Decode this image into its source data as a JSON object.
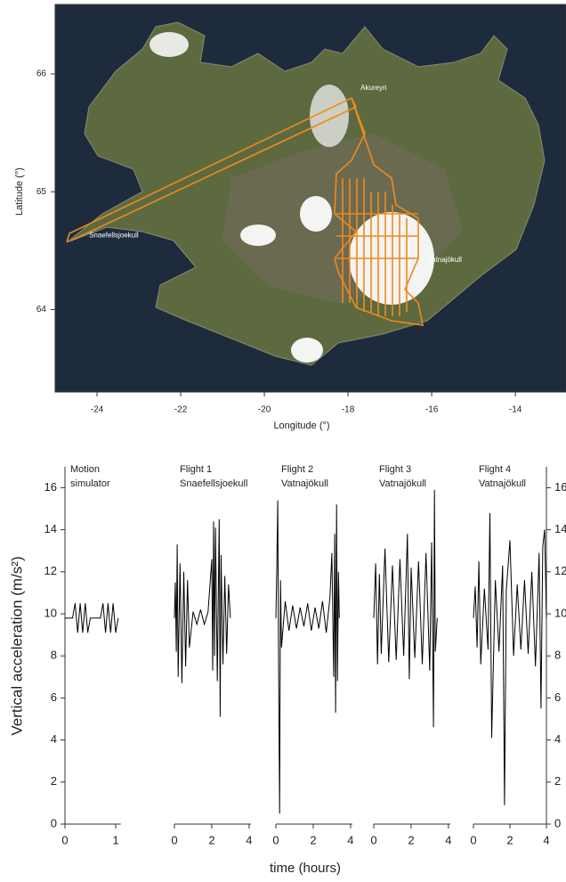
{
  "chart_data": [
    {
      "type": "map",
      "xlabel": "Longitude (°)",
      "ylabel": "Latitude (°)",
      "xlim": [
        -25.0,
        -12.79
      ],
      "ylim": [
        63.3,
        66.59
      ],
      "xticks": [
        -24,
        -22,
        -20,
        -18,
        -16,
        -14
      ],
      "yticks": [
        64,
        65,
        66
      ],
      "annotations": [
        {
          "text": "Akureyri",
          "x": -17.7,
          "y": 65.88
        },
        {
          "text": "Snaefellsjoekull",
          "x": -24.19,
          "y": 64.63
        },
        {
          "text": "Vatnajökull",
          "x": -16.1,
          "y": 64.42
        }
      ]
    },
    {
      "type": "line",
      "ylabel": "Vertical acceleration (m/s²)",
      "xlabel": "time (hours)",
      "ylim": [
        0,
        17
      ],
      "yticks": [
        0,
        2,
        4,
        6,
        8,
        10,
        12,
        14,
        16
      ],
      "color": "#000000",
      "panels": [
        {
          "label": "Motion",
          "sublabel": "simulator",
          "xlim": [
            0,
            1.1
          ],
          "xticks": [
            0,
            1
          ],
          "x": [
            0,
            0.15,
            0.2,
            0.25,
            0.3,
            0.35,
            0.4,
            0.45,
            0.5,
            0.6,
            0.7,
            0.75,
            0.8,
            0.85,
            0.9,
            0.95,
            1.0,
            1.05
          ],
          "values": [
            9.8,
            9.8,
            10.5,
            9.1,
            10.5,
            9.1,
            10.5,
            9.1,
            9.8,
            9.8,
            9.8,
            10.5,
            9.1,
            10.5,
            9.1,
            10.5,
            9.1,
            9.8
          ]
        },
        {
          "label": "Flight 1",
          "sublabel": "Snaefellsjoekull",
          "xlim": [
            0,
            4.1
          ],
          "xticks": [
            0,
            2,
            4
          ],
          "x": [
            0,
            0.05,
            0.1,
            0.15,
            0.2,
            0.3,
            0.4,
            0.5,
            0.6,
            0.7,
            0.8,
            1.0,
            1.2,
            1.4,
            1.6,
            1.8,
            2.0,
            2.05,
            2.1,
            2.15,
            2.2,
            2.3,
            2.4,
            2.45,
            2.5,
            2.6,
            2.7,
            2.8,
            2.9,
            3.0
          ],
          "values": [
            9.8,
            11.5,
            8.2,
            13.3,
            7.0,
            12.4,
            6.7,
            12.0,
            7.5,
            11.6,
            8.4,
            10.1,
            9.5,
            10.2,
            9.5,
            10.1,
            12.6,
            7.3,
            14.4,
            8.0,
            14.1,
            6.8,
            14.5,
            5.1,
            12.8,
            7.6,
            11.8,
            8.1,
            11.4,
            9.8
          ]
        },
        {
          "label": "Flight 2",
          "sublabel": "Vatnajökull",
          "xlim": [
            0,
            4.1
          ],
          "xticks": [
            0,
            2,
            4
          ],
          "x": [
            0,
            0.05,
            0.1,
            0.15,
            0.2,
            0.25,
            0.3,
            0.5,
            0.7,
            0.9,
            1.1,
            1.3,
            1.5,
            1.7,
            1.9,
            2.1,
            2.3,
            2.5,
            2.7,
            2.9,
            3.0,
            3.1,
            3.15,
            3.2,
            3.25,
            3.3,
            3.35,
            3.4
          ],
          "values": [
            9.8,
            12.1,
            15.4,
            7.2,
            0.5,
            11.6,
            8.4,
            10.6,
            9.2,
            10.4,
            9.3,
            10.3,
            9.4,
            10.5,
            9.2,
            10.3,
            9.3,
            10.6,
            9.1,
            10.8,
            12.9,
            7.0,
            13.8,
            5.3,
            15.2,
            6.8,
            12.0,
            9.8
          ]
        },
        {
          "label": "Flight 3",
          "sublabel": "Vatnajökull",
          "xlim": [
            0,
            4.1
          ],
          "xticks": [
            0,
            2,
            4
          ],
          "x": [
            0,
            0.1,
            0.2,
            0.3,
            0.4,
            0.6,
            0.8,
            1.0,
            1.2,
            1.4,
            1.6,
            1.8,
            1.9,
            2.0,
            2.2,
            2.4,
            2.6,
            2.8,
            3.0,
            3.1,
            3.2,
            3.25,
            3.3,
            3.4
          ],
          "values": [
            9.8,
            12.4,
            7.6,
            11.9,
            8.1,
            13.1,
            7.7,
            12.3,
            7.8,
            12.6,
            8.0,
            13.8,
            6.9,
            12.2,
            7.9,
            12.5,
            7.6,
            12.9,
            7.3,
            13.4,
            4.6,
            15.9,
            8.2,
            9.8
          ]
        },
        {
          "label": "Flight 4",
          "sublabel": "Vatnajökull",
          "xlim": [
            0,
            4.0
          ],
          "xticks": [
            0,
            2,
            4
          ],
          "x": [
            0,
            0.1,
            0.2,
            0.3,
            0.4,
            0.6,
            0.8,
            0.9,
            1.0,
            1.2,
            1.4,
            1.6,
            1.7,
            1.8,
            2.0,
            2.2,
            2.4,
            2.6,
            2.8,
            3.0,
            3.2,
            3.4,
            3.6,
            3.7,
            3.8,
            3.9,
            4.0
          ],
          "values": [
            9.8,
            11.3,
            8.4,
            12.5,
            7.6,
            11.2,
            8.3,
            14.8,
            4.1,
            11.6,
            8.2,
            12.3,
            0.9,
            11.1,
            13.5,
            8.0,
            11.4,
            8.3,
            11.6,
            8.1,
            12.0,
            7.5,
            12.9,
            5.5,
            13.2,
            14.0,
            9.8
          ]
        }
      ]
    }
  ]
}
